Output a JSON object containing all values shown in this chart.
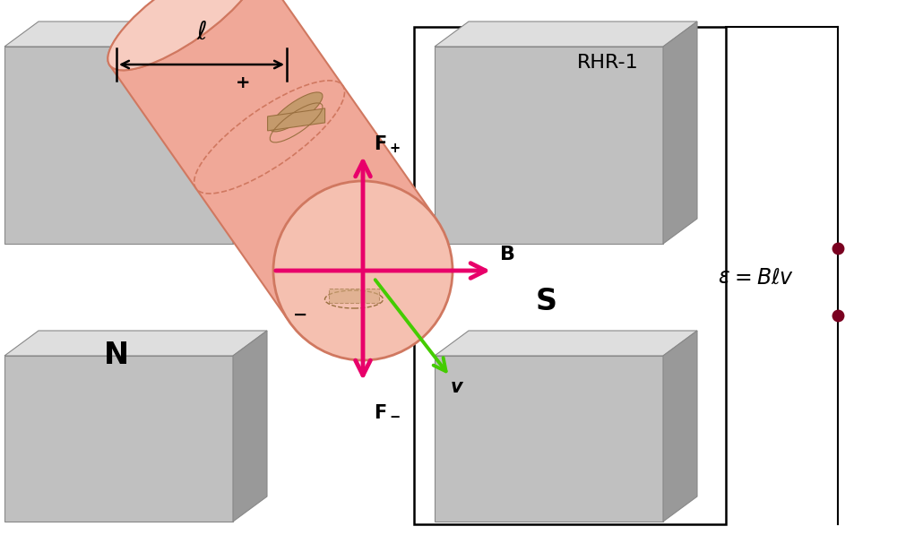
{
  "bg_color": "#ffffff",
  "mg_face": "#c0c0c0",
  "mg_dark": "#999999",
  "mg_light": "#dedede",
  "tube_salmon": "#f0a898",
  "tube_light": "#f7ccc0",
  "tube_edge": "#d07860",
  "cond_color": "#c49a6c",
  "cond_edge": "#9a7040",
  "arrow_pink": "#e8006a",
  "arrow_green": "#44cc00",
  "dot_color": "#7a0020",
  "black": "#000000",
  "N_label": "N",
  "S_label": "S",
  "RHR_label": "RHR-1",
  "B_label": "B",
  "Fp_label": "F",
  "Fm_label": "F",
  "v_label": "v",
  "ell_label": "ℓ",
  "plus_label": "+",
  "minus_label": "−",
  "emf_text": "ε = "
}
